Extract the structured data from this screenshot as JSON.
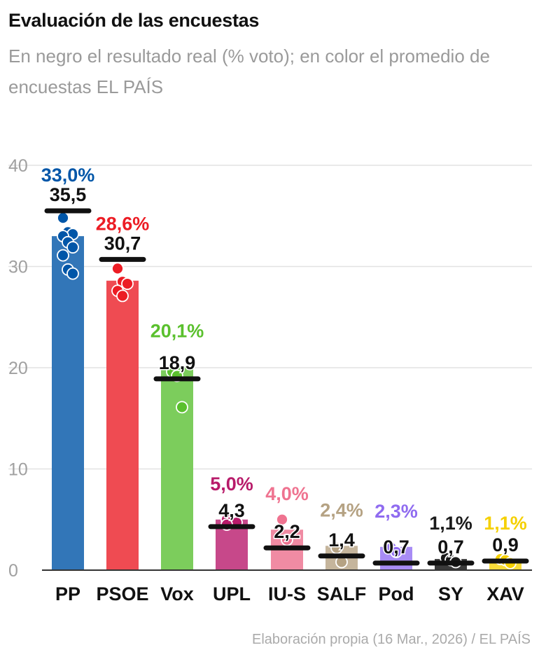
{
  "title": "Evaluación de las encuestas",
  "subtitle": "En negro el resultado real (% voto); en color el promedio de encuestas EL PAÍS",
  "footer": "Elaboración propia (16 Mar., 2026) / EL PAÍS",
  "chart_data": {
    "type": "bar",
    "ylim": [
      0,
      40
    ],
    "yticks": [
      "0",
      "10",
      "20",
      "30",
      "40"
    ],
    "grid": true,
    "categories": [
      "PP",
      "PSOE",
      "Vox",
      "UPL",
      "IU-S",
      "SALF",
      "Pod",
      "SY",
      "XAV"
    ],
    "average": [
      33.0,
      28.6,
      20.1,
      5.0,
      4.0,
      2.4,
      2.3,
      1.1,
      1.1
    ],
    "average_labels": [
      "33,0%",
      "28,6%",
      "20,1%",
      "5,0%",
      "4,0%",
      "2,4%",
      "2,3%",
      "1,1%",
      "1,1%"
    ],
    "real": [
      35.5,
      30.7,
      18.9,
      4.3,
      2.2,
      1.4,
      0.7,
      0.7,
      0.9
    ],
    "real_labels": [
      "35,5",
      "30,7",
      "18,9",
      "4,3",
      "2,2",
      "1,4",
      "0,7",
      "0,7",
      "0,9"
    ],
    "polls": [
      [
        34.8,
        33.4,
        33.2,
        33.0,
        32.4,
        31.9,
        31.1,
        29.7,
        29.3
      ],
      [
        29.8,
        28.5,
        28.3,
        27.6,
        27.1
      ],
      [
        19.6,
        19.2,
        16.1
      ],
      [
        5.0,
        4.8,
        4.7,
        4.5
      ],
      [
        5.0,
        3.0
      ],
      [
        2.2,
        0.8
      ],
      [
        2.2,
        1.8
      ],
      [
        1.2,
        1.0,
        0.8
      ],
      [
        1.1,
        1.0,
        0.7
      ]
    ],
    "colors": [
      "#0056a8",
      "#ec1c24",
      "#5ac02d",
      "#b81b6a",
      "#ef7390",
      "#b5a283",
      "#8f6bf0",
      "#1a1a1a",
      "#f5d000"
    ],
    "bar_colors": [
      "#3276b8",
      "#ef4b52",
      "#7ccd5c",
      "#c7488a",
      "#f08ba3",
      "#c5b59c",
      "#a88cf5",
      "#3a3a3a",
      "#f8dc3a"
    ]
  }
}
